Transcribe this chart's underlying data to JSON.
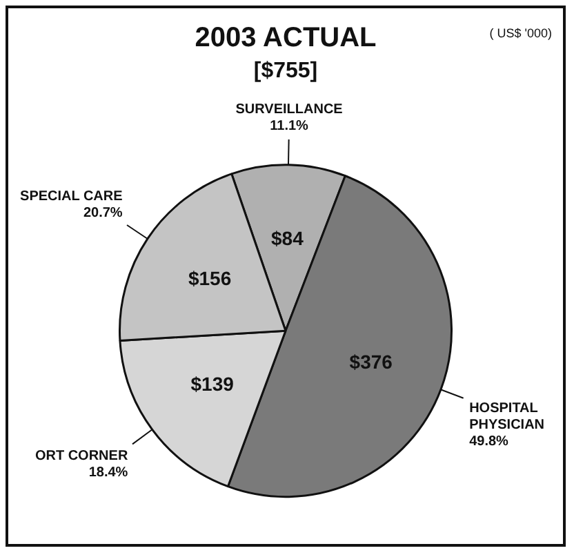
{
  "chart_data": {
    "type": "pie",
    "title": "2003 ACTUAL",
    "subtitle": "[$755]",
    "categories": [
      "SURVEILLANCE",
      "HOSPITAL PHYSICIAN",
      "ORT CORNER",
      "SPECIAL CARE"
    ],
    "values": [
      84,
      376,
      139,
      156
    ],
    "value_labels": [
      "$84",
      "$376",
      "$139",
      "$156"
    ],
    "colors": [
      "#b0b0b0",
      "#7a7a7a",
      "#d6d6d6",
      "#c4c4c4"
    ],
    "annotations": [
      "( US$ '000)",
      {
        "text": "11.1%",
        "x": "SURVEILLANCE"
      },
      {
        "text": "49.8%",
        "x": "HOSPITAL PHYSICIAN"
      },
      {
        "text": "18.4%",
        "x": "ORT CORNER"
      },
      {
        "text": "20.7%",
        "x": "SPECIAL CARE"
      }
    ],
    "legend": false
  }
}
